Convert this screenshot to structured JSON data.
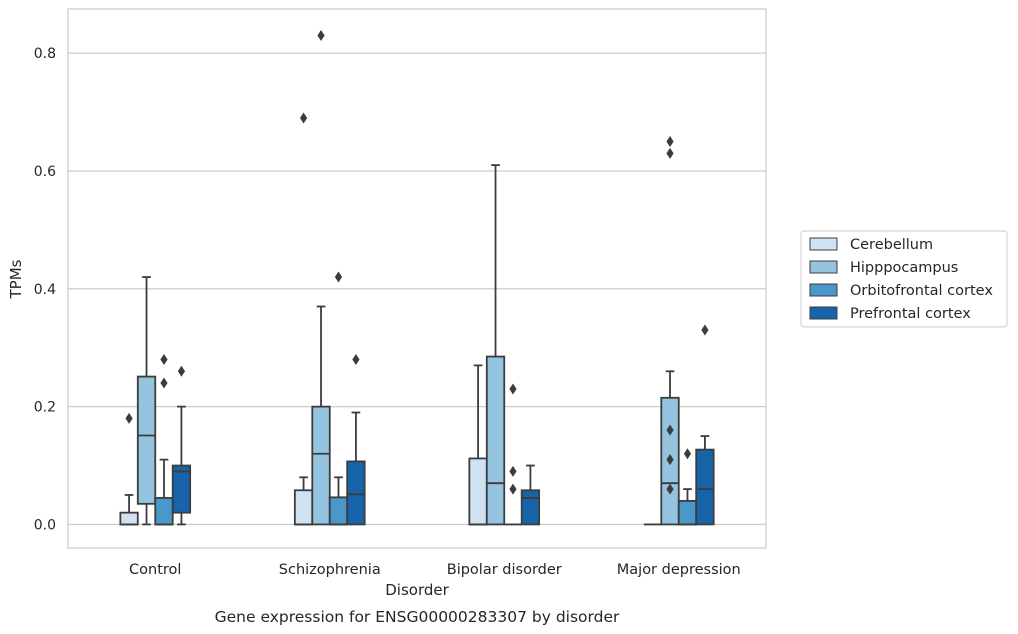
{
  "chart_data": {
    "type": "box",
    "xlabel": "Disorder",
    "ylabel": "TPMs",
    "caption": "Gene expression for ENSG00000283307 by disorder",
    "ylim": [
      -0.04,
      0.875
    ],
    "yticks": [
      0.0,
      0.2,
      0.4,
      0.6,
      0.8
    ],
    "ytick_labels": [
      "0.0",
      "0.2",
      "0.4",
      "0.6",
      "0.8"
    ],
    "grid": "y",
    "legend_position": "right",
    "categories": [
      "Control",
      "Schizophrenia",
      "Bipolar disorder",
      "Major depression"
    ],
    "series": [
      {
        "name": "Cerebellum",
        "color": "#d0e1f2",
        "boxes": [
          {
            "whislo": 0.0,
            "q1": 0.0,
            "med": 0.0,
            "q3": 0.02,
            "whishi": 0.05,
            "fliers": [
              0.18
            ]
          },
          {
            "whislo": 0.0,
            "q1": 0.0,
            "med": 0.0,
            "q3": 0.058,
            "whishi": 0.08,
            "fliers": [
              0.69
            ]
          },
          {
            "whislo": 0.0,
            "q1": 0.0,
            "med": 0.0,
            "q3": 0.112,
            "whishi": 0.27,
            "fliers": []
          },
          {
            "whislo": 0.0,
            "q1": 0.0,
            "med": 0.0,
            "q3": 0.0,
            "whishi": 0.0,
            "fliers": []
          }
        ]
      },
      {
        "name": "Hipppocampus",
        "color": "#94c4df",
        "boxes": [
          {
            "whislo": 0.0,
            "q1": 0.035,
            "med": 0.151,
            "q3": 0.251,
            "whishi": 0.42,
            "fliers": []
          },
          {
            "whislo": 0.0,
            "q1": 0.0,
            "med": 0.12,
            "q3": 0.2,
            "whishi": 0.37,
            "fliers": [
              0.83
            ]
          },
          {
            "whislo": 0.0,
            "q1": 0.0,
            "med": 0.07,
            "q3": 0.285,
            "whishi": 0.61,
            "fliers": []
          },
          {
            "whislo": 0.0,
            "q1": 0.0,
            "med": 0.07,
            "q3": 0.215,
            "whishi": 0.26,
            "fliers": [
              0.06,
              0.11,
              0.16,
              0.63,
              0.65
            ]
          }
        ]
      },
      {
        "name": "Orbitofrontal cortex",
        "color": "#4a98c9",
        "boxes": [
          {
            "whislo": 0.0,
            "q1": 0.0,
            "med": 0.0,
            "q3": 0.045,
            "whishi": 0.11,
            "fliers": [
              0.24,
              0.28
            ]
          },
          {
            "whislo": 0.0,
            "q1": 0.0,
            "med": 0.0,
            "q3": 0.046,
            "whishi": 0.08,
            "fliers": [
              0.42
            ]
          },
          {
            "whislo": 0.0,
            "q1": 0.0,
            "med": 0.0,
            "q3": 0.0,
            "whishi": 0.0,
            "fliers": [
              0.06,
              0.09,
              0.23
            ]
          },
          {
            "whislo": 0.0,
            "q1": 0.0,
            "med": 0.0,
            "q3": 0.04,
            "whishi": 0.06,
            "fliers": [
              0.12
            ]
          }
        ]
      },
      {
        "name": "Prefrontal cortex",
        "color": "#1764ab",
        "boxes": [
          {
            "whislo": 0.0,
            "q1": 0.02,
            "med": 0.09,
            "q3": 0.1,
            "whishi": 0.2,
            "fliers": [
              0.26
            ]
          },
          {
            "whislo": 0.0,
            "q1": 0.0,
            "med": 0.051,
            "q3": 0.107,
            "whishi": 0.19,
            "fliers": [
              0.28
            ]
          },
          {
            "whislo": 0.0,
            "q1": 0.0,
            "med": 0.045,
            "q3": 0.058,
            "whishi": 0.1,
            "fliers": []
          },
          {
            "whislo": 0.0,
            "q1": 0.0,
            "med": 0.06,
            "q3": 0.127,
            "whishi": 0.15,
            "fliers": [
              0.33
            ]
          }
        ]
      }
    ]
  }
}
